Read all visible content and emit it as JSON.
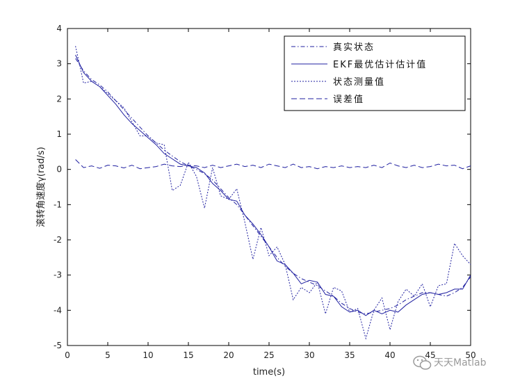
{
  "chart_data": {
    "type": "line",
    "title": "",
    "xlabel": "time(s)",
    "ylabel": "滚转角速度γ(rad/s)",
    "xlim": [
      0,
      50
    ],
    "ylim": [
      -5,
      4
    ],
    "xticks": [
      0,
      5,
      10,
      15,
      20,
      25,
      30,
      35,
      40,
      45,
      50
    ],
    "yticks": [
      4,
      3,
      2,
      1,
      0,
      -1,
      -2,
      -3,
      -4,
      -5
    ],
    "grid": false,
    "legend_position": "top-right",
    "color": "#1f1fa0",
    "series": [
      {
        "name": "真实状态",
        "style": "dash-dot",
        "x": [
          1,
          2,
          3,
          4,
          5,
          6,
          7,
          8,
          9,
          10,
          11,
          12,
          13,
          14,
          15,
          16,
          17,
          18,
          19,
          20,
          21,
          22,
          23,
          24,
          25,
          26,
          27,
          28,
          29,
          30,
          31,
          32,
          33,
          34,
          35,
          36,
          37,
          38,
          39,
          40,
          41,
          42,
          43,
          44,
          45,
          46,
          47,
          48,
          49,
          50
        ],
        "y": [
          3.15,
          2.8,
          2.55,
          2.4,
          2.2,
          1.95,
          1.7,
          1.45,
          1.2,
          0.95,
          0.75,
          0.55,
          0.38,
          0.22,
          0.1,
          0.0,
          -0.12,
          -0.3,
          -0.55,
          -0.8,
          -1.0,
          -1.3,
          -1.6,
          -1.9,
          -2.2,
          -2.5,
          -2.75,
          -2.95,
          -3.1,
          -3.2,
          -3.3,
          -3.45,
          -3.6,
          -3.8,
          -3.95,
          -4.05,
          -4.1,
          -4.05,
          -4.0,
          -3.95,
          -3.85,
          -3.7,
          -3.6,
          -3.5,
          -3.5,
          -3.55,
          -3.6,
          -3.5,
          -3.35,
          -3.05
        ]
      },
      {
        "name": "EKF最优估计估计值",
        "style": "solid",
        "x": [
          1,
          2,
          3,
          4,
          5,
          6,
          7,
          8,
          9,
          10,
          11,
          12,
          13,
          14,
          15,
          16,
          17,
          18,
          19,
          20,
          21,
          22,
          23,
          24,
          25,
          26,
          27,
          28,
          29,
          30,
          31,
          32,
          33,
          34,
          35,
          36,
          37,
          38,
          39,
          40,
          41,
          42,
          43,
          44,
          45,
          46,
          47,
          48,
          49,
          50
        ],
        "y": [
          3.25,
          2.75,
          2.5,
          2.35,
          2.1,
          1.85,
          1.55,
          1.3,
          1.1,
          0.9,
          0.7,
          0.45,
          0.3,
          0.15,
          0.1,
          0.05,
          -0.1,
          -0.4,
          -0.6,
          -0.85,
          -0.9,
          -1.3,
          -1.55,
          -1.85,
          -2.2,
          -2.6,
          -2.7,
          -2.95,
          -3.25,
          -3.15,
          -3.2,
          -3.55,
          -3.6,
          -3.9,
          -4.05,
          -4.0,
          -4.15,
          -4.0,
          -4.1,
          -4.0,
          -4.05,
          -3.85,
          -3.7,
          -3.55,
          -3.5,
          -3.55,
          -3.5,
          -3.4,
          -3.4,
          -3.0
        ]
      },
      {
        "name": "状态测量值",
        "style": "dotted",
        "x": [
          1,
          2,
          3,
          4,
          5,
          6,
          7,
          8,
          9,
          10,
          11,
          12,
          13,
          14,
          15,
          16,
          17,
          18,
          19,
          20,
          21,
          22,
          23,
          24,
          25,
          26,
          27,
          28,
          29,
          30,
          31,
          32,
          33,
          34,
          35,
          36,
          37,
          38,
          39,
          40,
          41,
          42,
          43,
          44,
          45,
          46,
          47,
          48,
          49,
          50
        ],
        "y": [
          3.5,
          2.45,
          2.5,
          2.35,
          2.15,
          1.95,
          1.75,
          1.35,
          0.95,
          0.95,
          0.75,
          0.7,
          -0.6,
          -0.45,
          0.2,
          -0.2,
          -1.1,
          0.05,
          -0.75,
          -0.85,
          -0.55,
          -1.5,
          -2.55,
          -1.65,
          -2.45,
          -2.2,
          -2.7,
          -3.7,
          -3.35,
          -3.5,
          -3.2,
          -4.1,
          -3.35,
          -3.45,
          -4.05,
          -3.95,
          -4.8,
          -4.0,
          -3.65,
          -4.55,
          -3.75,
          -3.4,
          -3.6,
          -3.25,
          -3.9,
          -3.3,
          -3.25,
          -2.1,
          -2.45,
          -2.7
        ]
      },
      {
        "name": "误差值",
        "style": "dashed",
        "x": [
          1,
          2,
          3,
          4,
          5,
          6,
          7,
          8,
          9,
          10,
          11,
          12,
          13,
          14,
          15,
          16,
          17,
          18,
          19,
          20,
          21,
          22,
          23,
          24,
          25,
          26,
          27,
          28,
          29,
          30,
          31,
          32,
          33,
          34,
          35,
          36,
          37,
          38,
          39,
          40,
          41,
          42,
          43,
          44,
          45,
          46,
          47,
          48,
          49,
          50
        ],
        "y": [
          0.28,
          0.05,
          0.1,
          0.03,
          0.12,
          0.1,
          0.04,
          0.12,
          0.02,
          0.05,
          0.08,
          0.15,
          0.1,
          0.08,
          0.12,
          0.1,
          0.05,
          0.12,
          0.05,
          0.1,
          0.15,
          0.08,
          0.12,
          0.05,
          0.15,
          0.1,
          0.05,
          0.15,
          0.05,
          0.08,
          0.02,
          0.08,
          0.05,
          0.1,
          0.05,
          0.08,
          0.05,
          0.12,
          0.05,
          0.18,
          0.1,
          0.05,
          0.12,
          0.05,
          0.08,
          0.15,
          0.1,
          0.12,
          0.02,
          0.1
        ]
      }
    ]
  },
  "watermark": {
    "text": "天天Matlab",
    "icon": "wechat-logo-icon"
  }
}
